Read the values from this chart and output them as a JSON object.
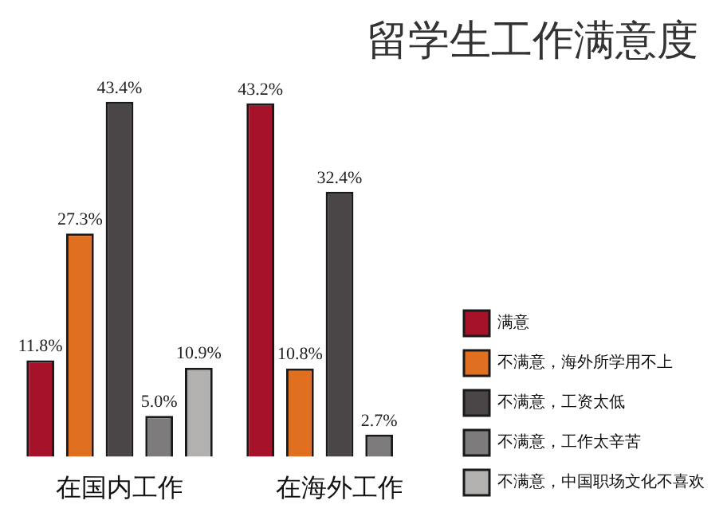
{
  "chart_data": {
    "type": "bar",
    "title": "留学生工作满意度",
    "categories": [
      "在国内工作",
      "在海外工作"
    ],
    "series": [
      {
        "name": "满意",
        "color": "#a5122a",
        "values": [
          11.8,
          43.2
        ],
        "value_labels": [
          "11.8%",
          "43.2%"
        ]
      },
      {
        "name": "不满意，海外所学用不上",
        "color": "#e07020",
        "values": [
          27.3,
          10.8
        ],
        "value_labels": [
          "27.3%",
          "10.8%"
        ]
      },
      {
        "name": "不满意，工资太低",
        "color": "#4a4546",
        "values": [
          43.4,
          32.4
        ],
        "value_labels": [
          "43.4%",
          "32.4%"
        ]
      },
      {
        "name": "不满意，工作太辛苦",
        "color": "#7d7b7c",
        "values": [
          5.0,
          2.7
        ],
        "value_labels": [
          "5.0%",
          "2.7%"
        ]
      },
      {
        "name": "不满意，中国职场文化不喜欢",
        "color": "#b3b0b0",
        "values": [
          10.9,
          null
        ],
        "value_labels": [
          "10.9%",
          null
        ]
      }
    ],
    "legend": "bottom right"
  }
}
